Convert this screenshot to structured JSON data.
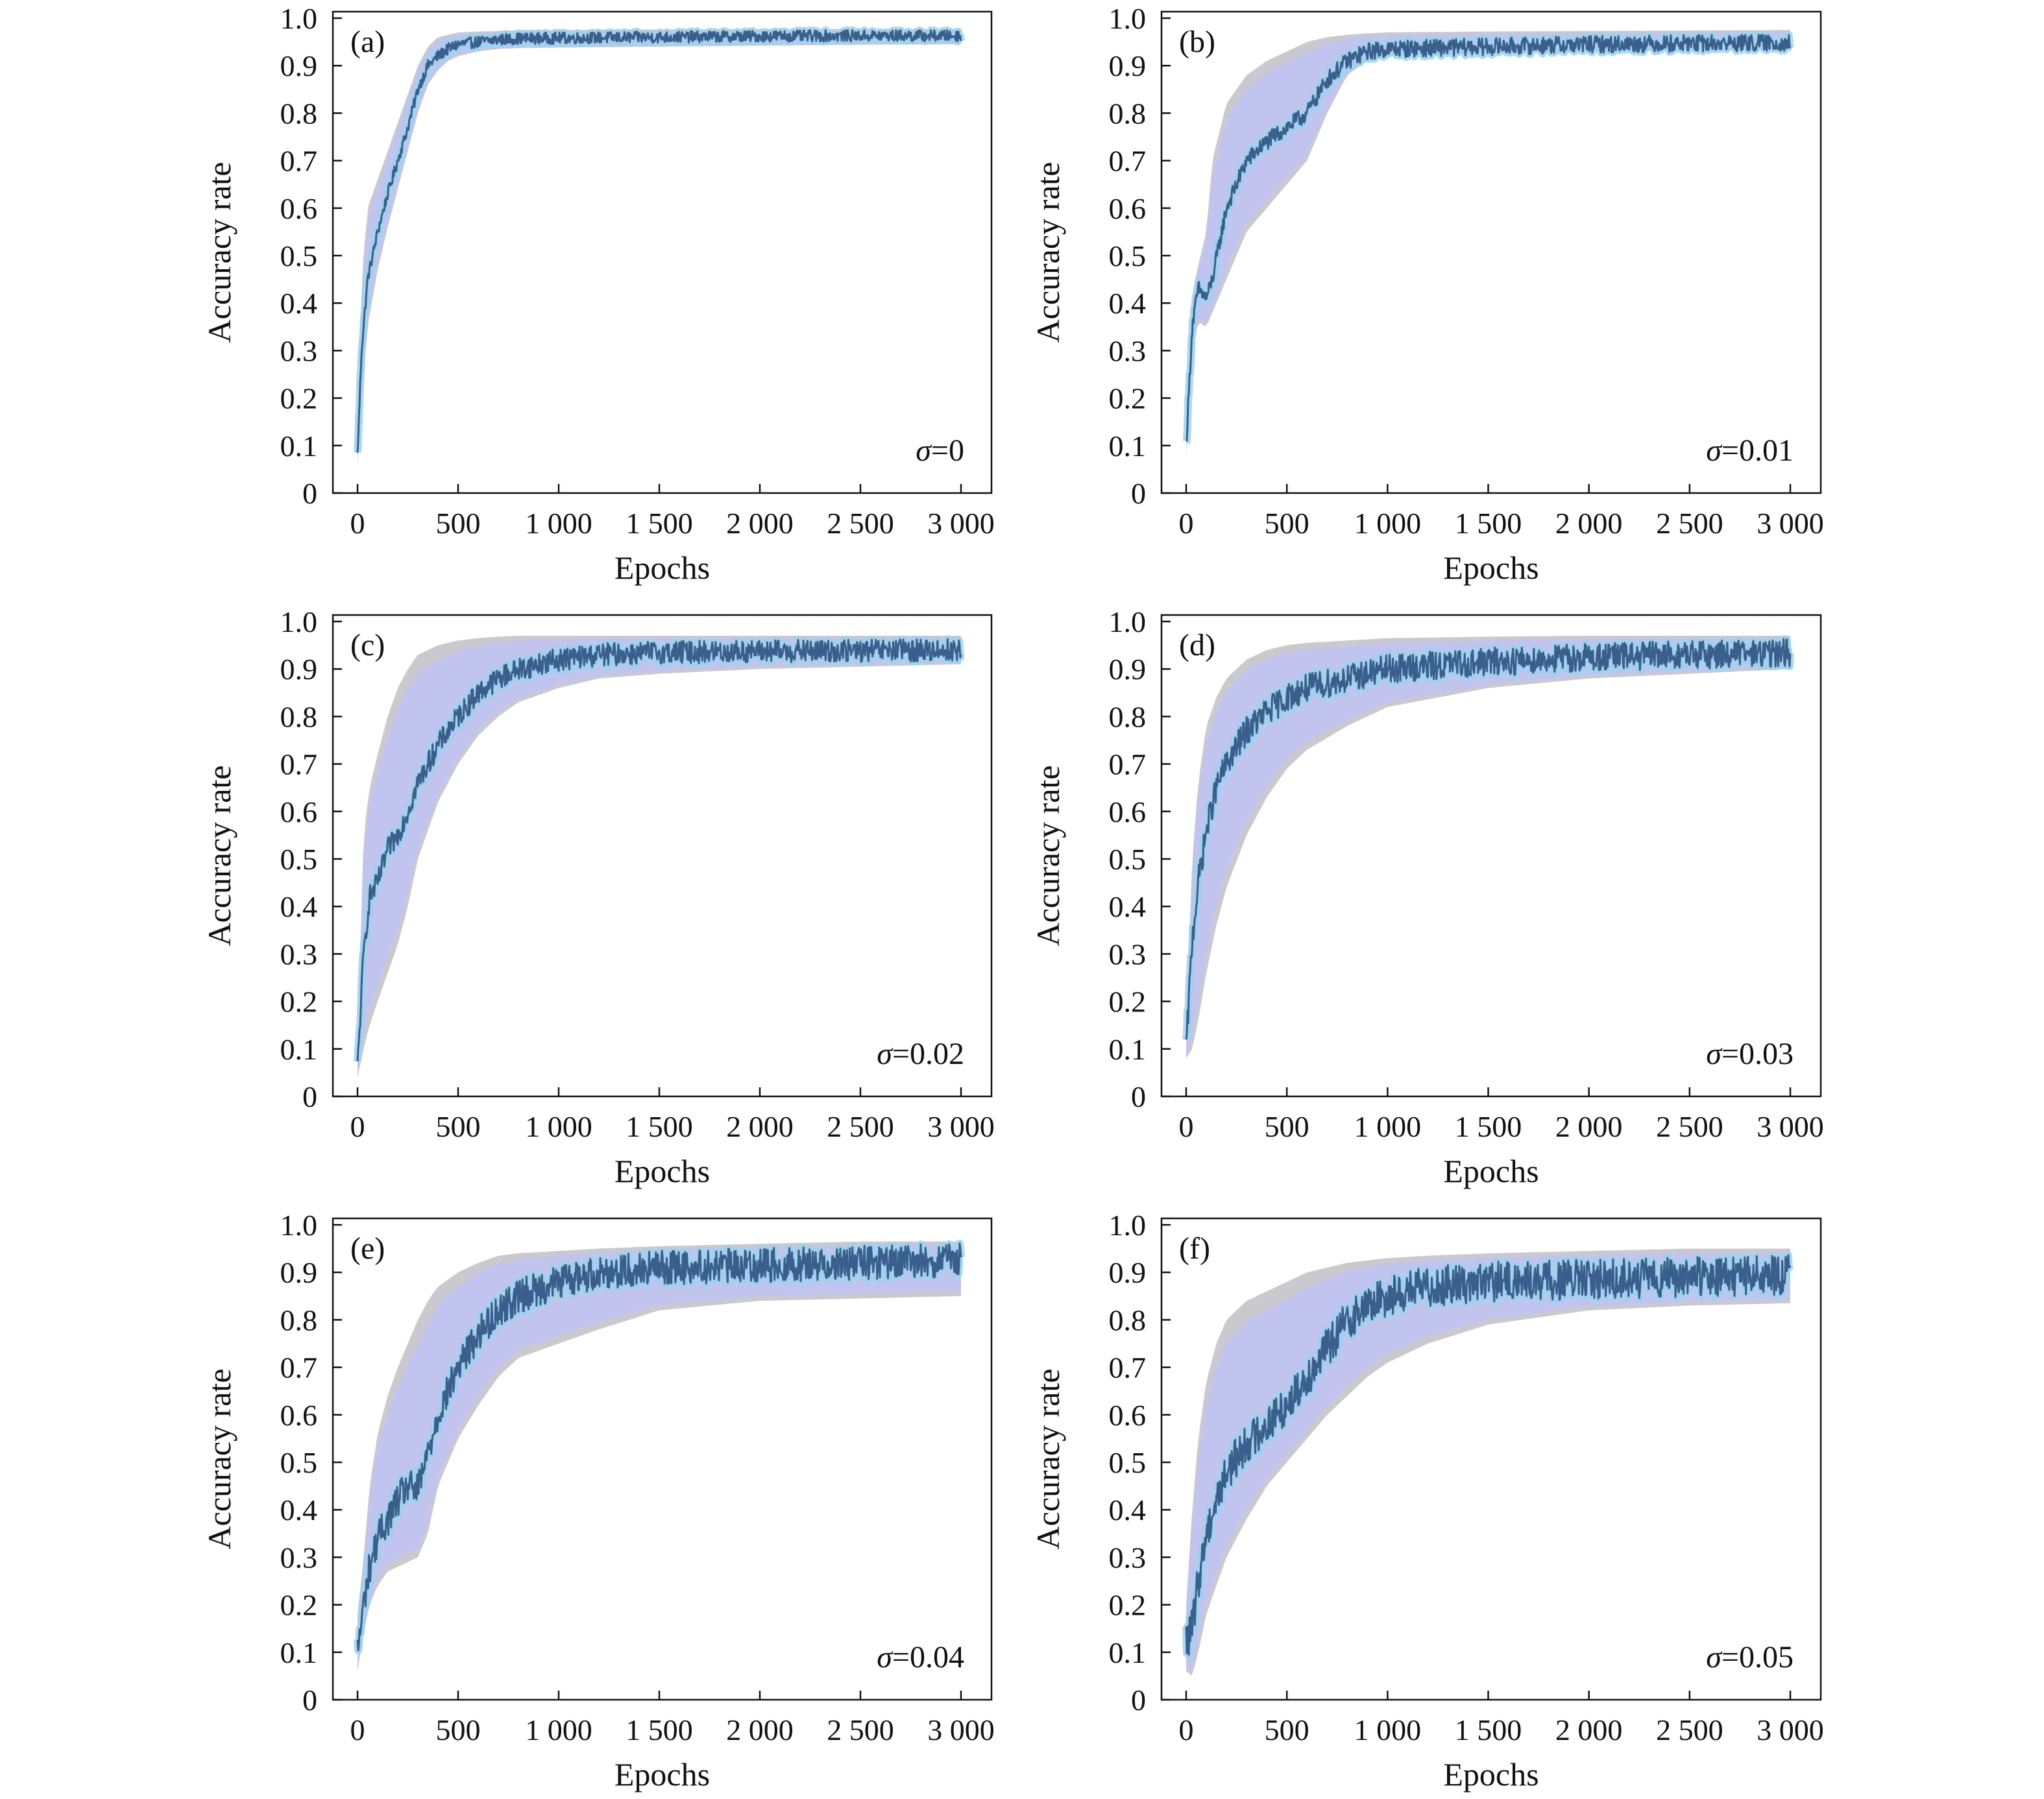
{
  "chart_data": [
    {
      "type": "line",
      "panel": "(a)",
      "annotation": "σ=0",
      "xlabel": "Epochs",
      "ylabel": "Accuracy rate",
      "xlim": [
        0,
        3000
      ],
      "ylim": [
        0,
        1.0
      ],
      "xticks": [
        "0",
        "500",
        "1 000",
        "1 500",
        "2 000",
        "2 500",
        "3 000"
      ],
      "yticks": [
        "0",
        "0.1",
        "0.2",
        "0.3",
        "0.4",
        "0.5",
        "0.6",
        "0.7",
        "0.8",
        "0.9",
        "1.0"
      ],
      "series": [
        {
          "x": [
            0,
            20,
            50,
            100,
            150,
            200,
            250,
            300,
            350,
            400,
            450,
            500,
            600,
            700,
            800,
            1000,
            1500,
            2000,
            2500,
            3000
          ],
          "mean": [
            0.08,
            0.3,
            0.45,
            0.55,
            0.63,
            0.7,
            0.77,
            0.85,
            0.9,
            0.92,
            0.935,
            0.945,
            0.95,
            0.955,
            0.957,
            0.958,
            0.96,
            0.962,
            0.963,
            0.963
          ],
          "upper": [
            0.15,
            0.45,
            0.6,
            0.66,
            0.72,
            0.78,
            0.84,
            0.9,
            0.94,
            0.96,
            0.965,
            0.97,
            0.972,
            0.973,
            0.974,
            0.975,
            0.976,
            0.977,
            0.977,
            0.977
          ],
          "lower": [
            0.06,
            0.2,
            0.35,
            0.47,
            0.56,
            0.64,
            0.72,
            0.8,
            0.86,
            0.89,
            0.91,
            0.92,
            0.93,
            0.935,
            0.937,
            0.938,
            0.94,
            0.942,
            0.944,
            0.945
          ]
        }
      ]
    },
    {
      "type": "line",
      "panel": "(b)",
      "annotation": "σ=0.01",
      "xlabel": "Epochs",
      "ylabel": "Accuracy rate",
      "xlim": [
        0,
        3000
      ],
      "ylim": [
        0,
        1.0
      ],
      "xticks": [
        "0",
        "500",
        "1 000",
        "1 500",
        "2 000",
        "2 500",
        "3 000"
      ],
      "yticks": [
        "0",
        "0.1",
        "0.2",
        "0.3",
        "0.4",
        "0.5",
        "0.6",
        "0.7",
        "0.8",
        "0.9",
        "1.0"
      ],
      "series": [
        {
          "x": [
            0,
            30,
            60,
            100,
            130,
            200,
            300,
            400,
            500,
            600,
            700,
            800,
            900,
            1000,
            1500,
            2000,
            2500,
            3000
          ],
          "mean": [
            0.1,
            0.35,
            0.43,
            0.41,
            0.45,
            0.6,
            0.7,
            0.74,
            0.77,
            0.8,
            0.87,
            0.91,
            0.93,
            0.935,
            0.94,
            0.945,
            0.947,
            0.948
          ],
          "upper": [
            0.15,
            0.42,
            0.48,
            0.55,
            0.7,
            0.82,
            0.88,
            0.91,
            0.93,
            0.95,
            0.96,
            0.965,
            0.968,
            0.97,
            0.972,
            0.973,
            0.974,
            0.975
          ],
          "lower": [
            0.08,
            0.3,
            0.36,
            0.35,
            0.38,
            0.45,
            0.55,
            0.6,
            0.65,
            0.7,
            0.8,
            0.88,
            0.91,
            0.92,
            0.925,
            0.93,
            0.932,
            0.933
          ]
        }
      ]
    },
    {
      "type": "line",
      "panel": "(c)",
      "annotation": "σ=0.02",
      "xlabel": "Epochs",
      "ylabel": "Accuracy rate",
      "xlim": [
        0,
        3000
      ],
      "ylim": [
        0,
        1.0
      ],
      "xticks": [
        "0",
        "500",
        "1 000",
        "1 500",
        "2 000",
        "2 500",
        "3 000"
      ],
      "yticks": [
        "0",
        "0.1",
        "0.2",
        "0.3",
        "0.4",
        "0.5",
        "0.6",
        "0.7",
        "0.8",
        "0.9",
        "1.0"
      ],
      "series": [
        {
          "x": [
            0,
            30,
            60,
            100,
            150,
            200,
            250,
            300,
            400,
            500,
            600,
            700,
            800,
            1000,
            1200,
            1500,
            2000,
            2500,
            3000
          ],
          "mean": [
            0.06,
            0.3,
            0.42,
            0.45,
            0.52,
            0.55,
            0.6,
            0.66,
            0.74,
            0.8,
            0.85,
            0.88,
            0.9,
            0.92,
            0.93,
            0.935,
            0.937,
            0.938,
            0.94
          ],
          "upper": [
            0.1,
            0.55,
            0.65,
            0.72,
            0.8,
            0.86,
            0.9,
            0.93,
            0.95,
            0.96,
            0.965,
            0.968,
            0.97,
            0.97,
            0.97,
            0.97,
            0.97,
            0.97,
            0.97
          ],
          "lower": [
            0.04,
            0.1,
            0.15,
            0.2,
            0.26,
            0.32,
            0.4,
            0.5,
            0.62,
            0.7,
            0.76,
            0.8,
            0.83,
            0.86,
            0.88,
            0.89,
            0.9,
            0.905,
            0.91
          ]
        }
      ]
    },
    {
      "type": "line",
      "panel": "(d)",
      "annotation": "σ=0.03",
      "xlabel": "Epochs",
      "ylabel": "Accuracy rate",
      "xlim": [
        0,
        3000
      ],
      "ylim": [
        0,
        1.0
      ],
      "xticks": [
        "0",
        "500",
        "1 000",
        "1 500",
        "2 000",
        "2 500",
        "3 000"
      ],
      "yticks": [
        "0",
        "0.1",
        "0.2",
        "0.3",
        "0.4",
        "0.5",
        "0.6",
        "0.7",
        "0.8",
        "0.9",
        "1.0"
      ],
      "series": [
        {
          "x": [
            0,
            30,
            60,
            100,
            150,
            200,
            300,
            400,
            500,
            600,
            800,
            1000,
            1500,
            2000,
            2500,
            3000
          ],
          "mean": [
            0.1,
            0.33,
            0.45,
            0.56,
            0.65,
            0.7,
            0.77,
            0.81,
            0.84,
            0.86,
            0.88,
            0.9,
            0.915,
            0.925,
            0.93,
            0.935
          ],
          "upper": [
            0.15,
            0.5,
            0.66,
            0.78,
            0.84,
            0.88,
            0.92,
            0.94,
            0.95,
            0.955,
            0.96,
            0.965,
            0.968,
            0.97,
            0.97,
            0.97
          ],
          "lower": [
            0.08,
            0.1,
            0.16,
            0.26,
            0.36,
            0.44,
            0.55,
            0.63,
            0.69,
            0.73,
            0.78,
            0.82,
            0.86,
            0.88,
            0.89,
            0.9
          ]
        }
      ]
    },
    {
      "type": "line",
      "panel": "(e)",
      "annotation": "σ=0.04",
      "xlabel": "Epochs",
      "ylabel": "Accuracy rate",
      "xlim": [
        0,
        3000
      ],
      "ylim": [
        0,
        1.0
      ],
      "xticks": [
        "0",
        "500",
        "1 000",
        "1 500",
        "2 000",
        "2 500",
        "3 000"
      ],
      "yticks": [
        "0",
        "0.1",
        "0.2",
        "0.3",
        "0.4",
        "0.5",
        "0.6",
        "0.7",
        "0.8",
        "0.9",
        "1.0"
      ],
      "series": [
        {
          "x": [
            0,
            30,
            60,
            100,
            150,
            200,
            250,
            300,
            350,
            400,
            500,
            600,
            700,
            800,
            1000,
            1200,
            1500,
            2000,
            2500,
            3000
          ],
          "mean": [
            0.1,
            0.2,
            0.28,
            0.34,
            0.38,
            0.42,
            0.45,
            0.44,
            0.52,
            0.6,
            0.7,
            0.77,
            0.82,
            0.85,
            0.88,
            0.9,
            0.91,
            0.915,
            0.92,
            0.925
          ],
          "upper": [
            0.18,
            0.3,
            0.45,
            0.56,
            0.64,
            0.7,
            0.75,
            0.8,
            0.84,
            0.87,
            0.9,
            0.92,
            0.935,
            0.94,
            0.945,
            0.95,
            0.955,
            0.96,
            0.965,
            0.965
          ],
          "lower": [
            0.06,
            0.14,
            0.2,
            0.24,
            0.27,
            0.28,
            0.29,
            0.3,
            0.35,
            0.45,
            0.55,
            0.62,
            0.68,
            0.72,
            0.75,
            0.78,
            0.82,
            0.84,
            0.845,
            0.85
          ]
        }
      ]
    },
    {
      "type": "line",
      "panel": "(f)",
      "annotation": "σ=0.05",
      "xlabel": "Epochs",
      "ylabel": "Accuracy rate",
      "xlim": [
        0,
        3000
      ],
      "ylim": [
        0,
        1.0
      ],
      "xticks": [
        "0",
        "500",
        "1 000",
        "1 500",
        "2 000",
        "2 500",
        "3 000"
      ],
      "yticks": [
        "0",
        "0.1",
        "0.2",
        "0.3",
        "0.4",
        "0.5",
        "0.6",
        "0.7",
        "0.8",
        "0.9",
        "1.0"
      ],
      "series": [
        {
          "x": [
            0,
            30,
            60,
            100,
            150,
            200,
            300,
            400,
            500,
            600,
            700,
            800,
            900,
            1000,
            1200,
            1500,
            2000,
            2500,
            3000
          ],
          "mean": [
            0.12,
            0.15,
            0.25,
            0.35,
            0.42,
            0.48,
            0.54,
            0.58,
            0.62,
            0.68,
            0.74,
            0.8,
            0.83,
            0.85,
            0.87,
            0.88,
            0.885,
            0.89,
            0.895
          ],
          "upper": [
            0.2,
            0.4,
            0.55,
            0.67,
            0.75,
            0.8,
            0.84,
            0.86,
            0.88,
            0.9,
            0.91,
            0.92,
            0.925,
            0.93,
            0.935,
            0.94,
            0.945,
            0.95,
            0.95
          ],
          "lower": [
            0.06,
            0.05,
            0.1,
            0.18,
            0.24,
            0.3,
            0.38,
            0.45,
            0.5,
            0.55,
            0.6,
            0.64,
            0.68,
            0.71,
            0.75,
            0.79,
            0.82,
            0.83,
            0.835
          ]
        }
      ]
    }
  ],
  "colors": {
    "band_outer": "#c9c9cf",
    "band_inner": "#c2c4f0",
    "line_glow": "#9ed2ec",
    "line": "#3a5f8c",
    "axis": "#111111"
  }
}
